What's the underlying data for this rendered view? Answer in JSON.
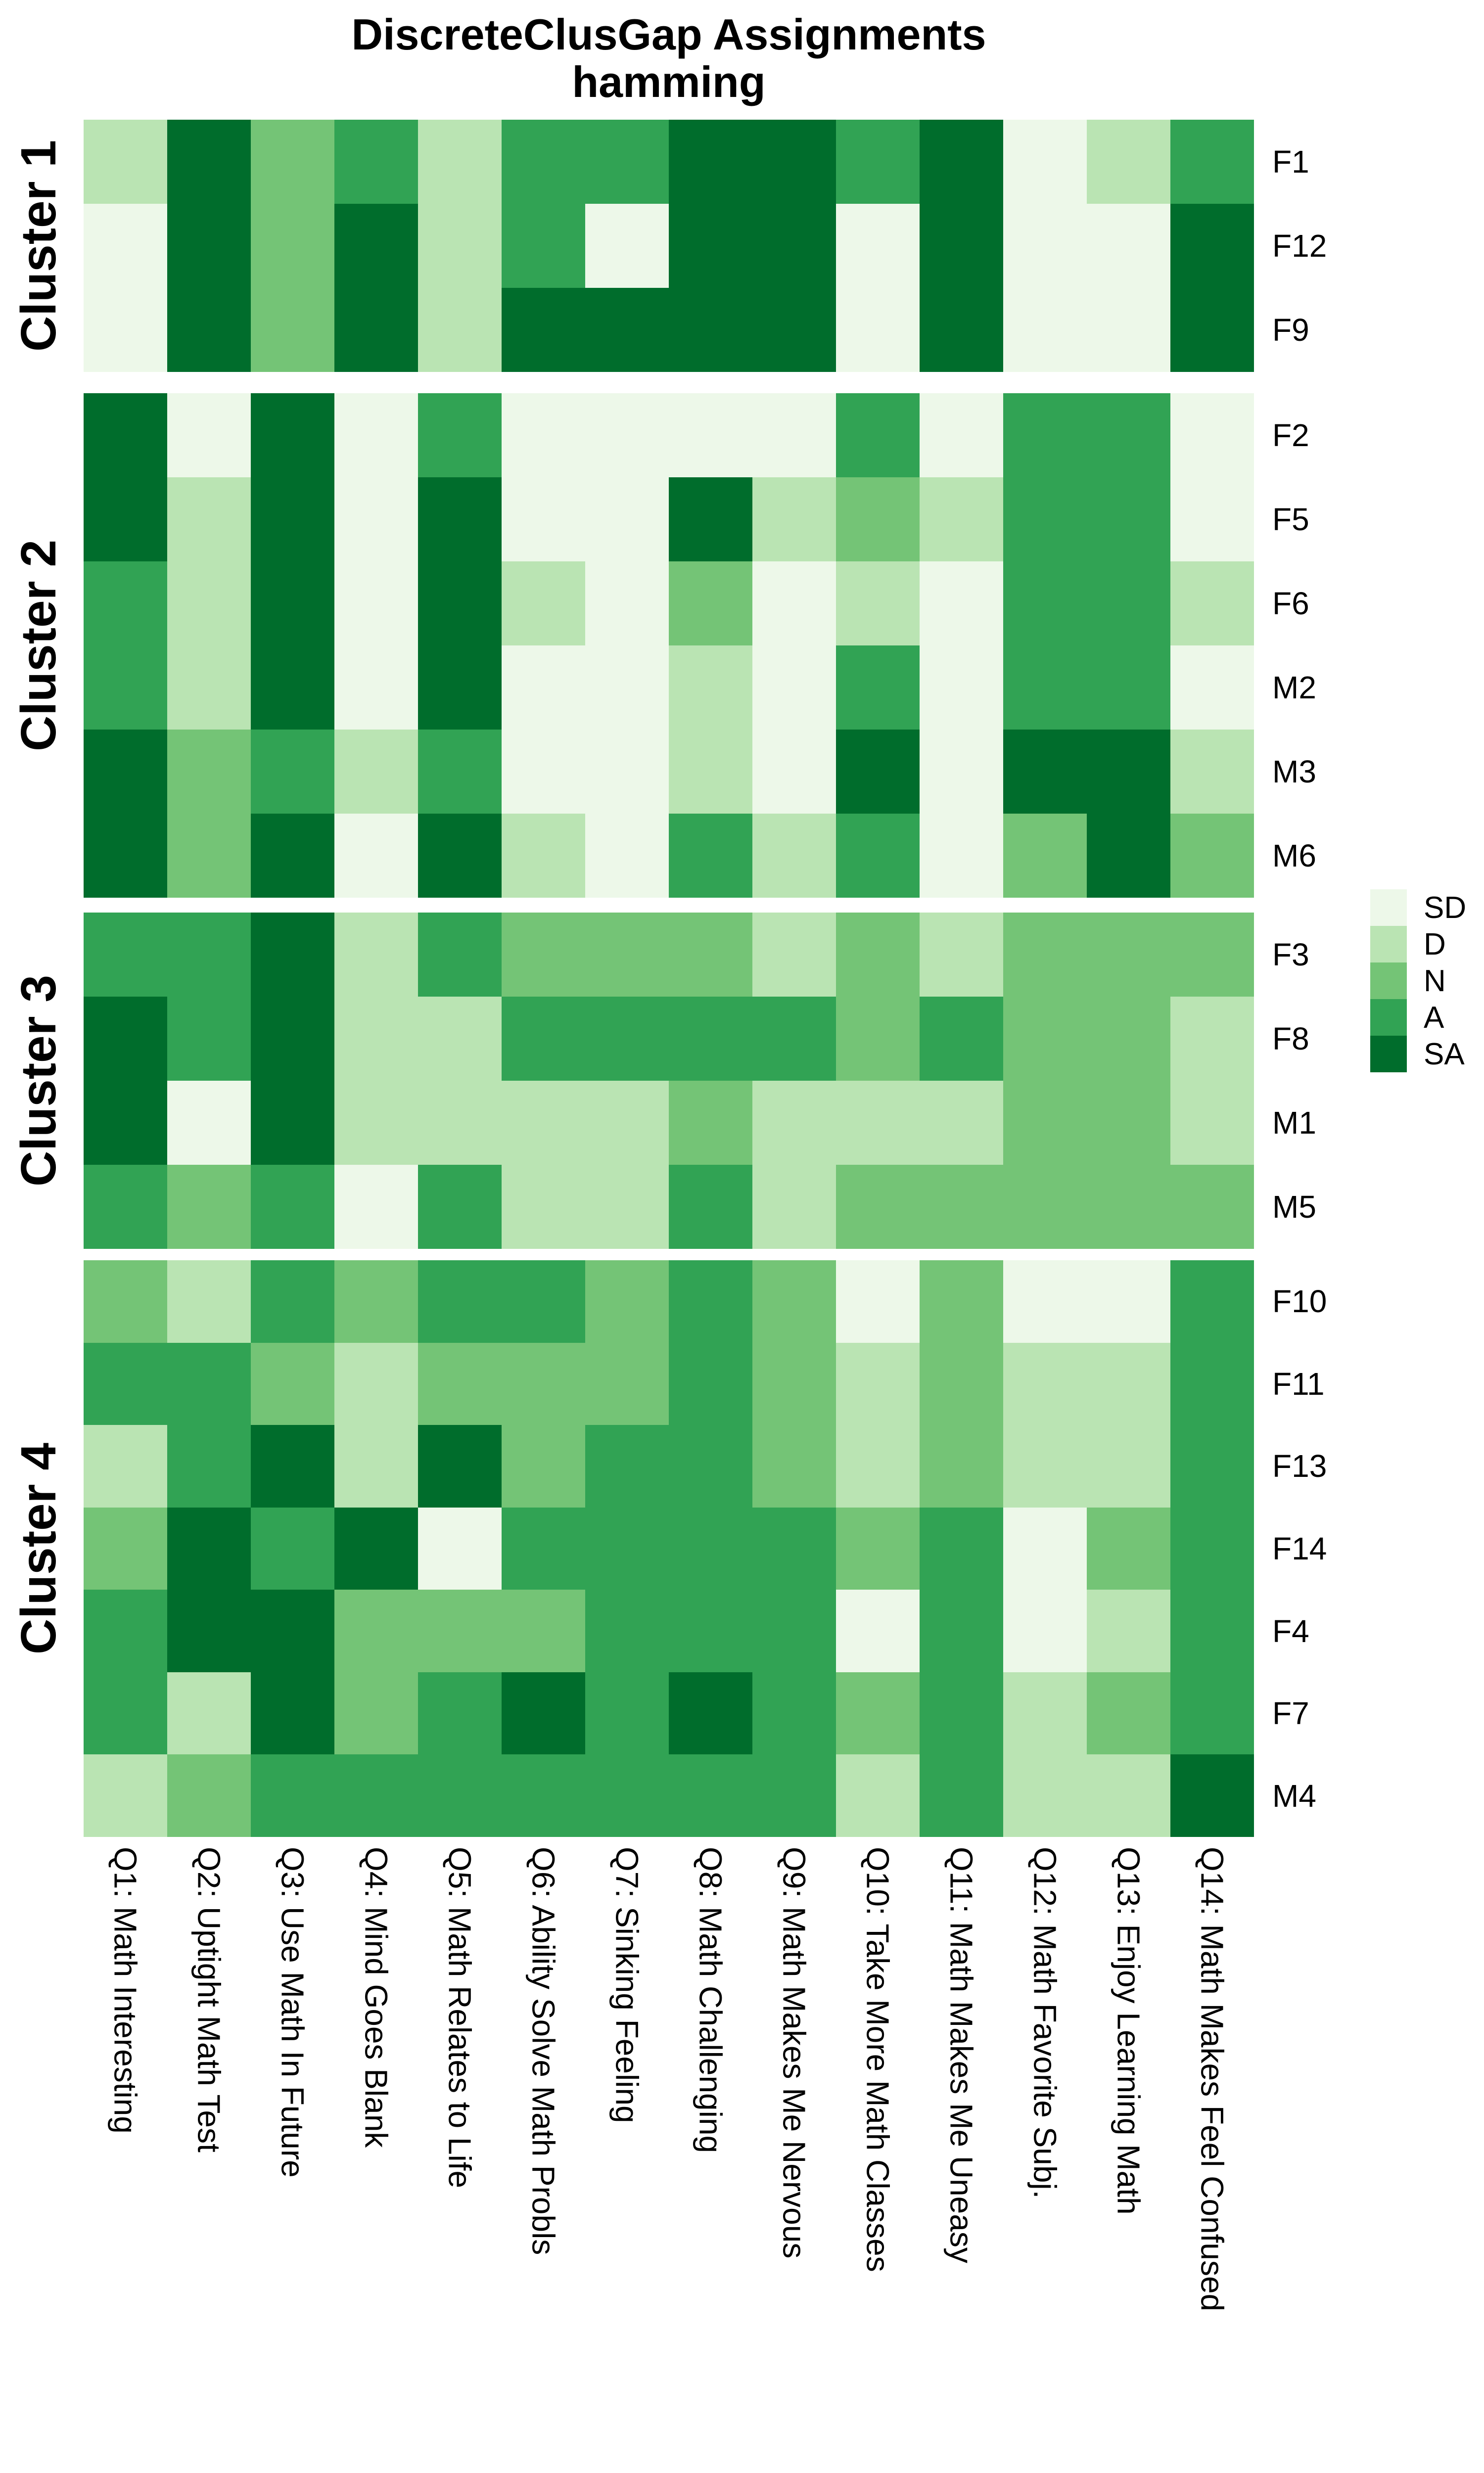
{
  "chart_data": {
    "type": "heatmap",
    "title": "DiscreteClusGap Assignments",
    "subtitle": "hamming",
    "columns": [
      "Q1: Math Interesting",
      "Q2: Uptight Math Test",
      "Q3: Use Math In Future",
      "Q4: Mind Goes Blank",
      "Q5: Math Relates to Life",
      "Q6: Ability Solve Math Probls",
      "Q7: Sinking Feeling",
      "Q8: Math Challenging",
      "Q9: Math Makes Me Nervous",
      "Q10: Take More Math Classes",
      "Q11: Math Makes Me Uneasy",
      "Q12: Math Favorite Subj.",
      "Q13: Enjoy Learning Math",
      "Q14: Math Makes Feel Confused"
    ],
    "legend": {
      "position": "right",
      "levels": [
        "SD",
        "D",
        "N",
        "A",
        "SA"
      ]
    },
    "colors": {
      "SD": "#EDF8E9",
      "D": "#BAE4B3",
      "N": "#74C476",
      "A": "#31A354",
      "SA": "#006D2C"
    },
    "clusters": [
      {
        "name": "Cluster 1",
        "rows": [
          {
            "id": "F1",
            "values": [
              "D",
              "SA",
              "N",
              "A",
              "D",
              "A",
              "A",
              "SA",
              "SA",
              "A",
              "SA",
              "SD",
              "D",
              "A"
            ]
          },
          {
            "id": "F12",
            "values": [
              "SD",
              "SA",
              "N",
              "SA",
              "D",
              "A",
              "SD",
              "SA",
              "SA",
              "SD",
              "SA",
              "SD",
              "SD",
              "SA"
            ]
          },
          {
            "id": "F9",
            "values": [
              "SD",
              "SA",
              "N",
              "SA",
              "D",
              "SA",
              "SA",
              "SA",
              "SA",
              "SD",
              "SA",
              "SD",
              "SD",
              "SA"
            ]
          }
        ]
      },
      {
        "name": "Cluster 2",
        "rows": [
          {
            "id": "F2",
            "values": [
              "SA",
              "SD",
              "SA",
              "SD",
              "A",
              "SD",
              "SD",
              "SD",
              "SD",
              "A",
              "SD",
              "A",
              "A",
              "SD"
            ]
          },
          {
            "id": "F5",
            "values": [
              "SA",
              "D",
              "SA",
              "SD",
              "SA",
              "SD",
              "SD",
              "SA",
              "D",
              "N",
              "D",
              "A",
              "A",
              "SD"
            ]
          },
          {
            "id": "F6",
            "values": [
              "A",
              "D",
              "SA",
              "SD",
              "SA",
              "D",
              "SD",
              "N",
              "SD",
              "D",
              "SD",
              "A",
              "A",
              "D"
            ]
          },
          {
            "id": "M2",
            "values": [
              "A",
              "D",
              "SA",
              "SD",
              "SA",
              "SD",
              "SD",
              "D",
              "SD",
              "A",
              "SD",
              "A",
              "A",
              "SD"
            ]
          },
          {
            "id": "M3",
            "values": [
              "SA",
              "N",
              "A",
              "D",
              "A",
              "SD",
              "SD",
              "D",
              "SD",
              "SA",
              "SD",
              "SA",
              "SA",
              "D"
            ]
          },
          {
            "id": "M6",
            "values": [
              "SA",
              "N",
              "SA",
              "SD",
              "SA",
              "D",
              "SD",
              "A",
              "D",
              "A",
              "SD",
              "N",
              "SA",
              "N"
            ]
          }
        ]
      },
      {
        "name": "Cluster 3",
        "rows": [
          {
            "id": "F3",
            "values": [
              "A",
              "A",
              "SA",
              "D",
              "A",
              "N",
              "N",
              "N",
              "D",
              "N",
              "D",
              "N",
              "N",
              "N"
            ]
          },
          {
            "id": "F8",
            "values": [
              "SA",
              "A",
              "SA",
              "D",
              "D",
              "A",
              "A",
              "A",
              "A",
              "N",
              "A",
              "N",
              "N",
              "D"
            ]
          },
          {
            "id": "M1",
            "values": [
              "SA",
              "SD",
              "SA",
              "D",
              "D",
              "D",
              "D",
              "N",
              "D",
              "D",
              "D",
              "N",
              "N",
              "D"
            ]
          },
          {
            "id": "M5",
            "values": [
              "A",
              "N",
              "A",
              "SD",
              "A",
              "D",
              "D",
              "A",
              "D",
              "N",
              "N",
              "N",
              "N",
              "N"
            ]
          }
        ]
      },
      {
        "name": "Cluster 4",
        "rows": [
          {
            "id": "F10",
            "values": [
              "N",
              "D",
              "A",
              "N",
              "A",
              "A",
              "N",
              "A",
              "N",
              "SD",
              "N",
              "SD",
              "SD",
              "A"
            ]
          },
          {
            "id": "F11",
            "values": [
              "A",
              "A",
              "N",
              "D",
              "N",
              "N",
              "N",
              "A",
              "N",
              "D",
              "N",
              "D",
              "D",
              "A"
            ]
          },
          {
            "id": "F13",
            "values": [
              "D",
              "A",
              "SA",
              "D",
              "SA",
              "N",
              "A",
              "A",
              "N",
              "D",
              "N",
              "D",
              "D",
              "A"
            ]
          },
          {
            "id": "F14",
            "values": [
              "N",
              "SA",
              "A",
              "SA",
              "SD",
              "A",
              "A",
              "A",
              "A",
              "N",
              "A",
              "SD",
              "N",
              "A"
            ]
          },
          {
            "id": "F4",
            "values": [
              "A",
              "SA",
              "SA",
              "N",
              "N",
              "N",
              "A",
              "A",
              "A",
              "SD",
              "A",
              "SD",
              "D",
              "A"
            ]
          },
          {
            "id": "F7",
            "values": [
              "A",
              "D",
              "SA",
              "N",
              "A",
              "SA",
              "A",
              "SA",
              "A",
              "N",
              "A",
              "D",
              "N",
              "A"
            ]
          },
          {
            "id": "M4",
            "values": [
              "D",
              "N",
              "A",
              "A",
              "A",
              "A",
              "A",
              "A",
              "A",
              "D",
              "A",
              "D",
              "D",
              "SA"
            ]
          }
        ]
      }
    ]
  }
}
